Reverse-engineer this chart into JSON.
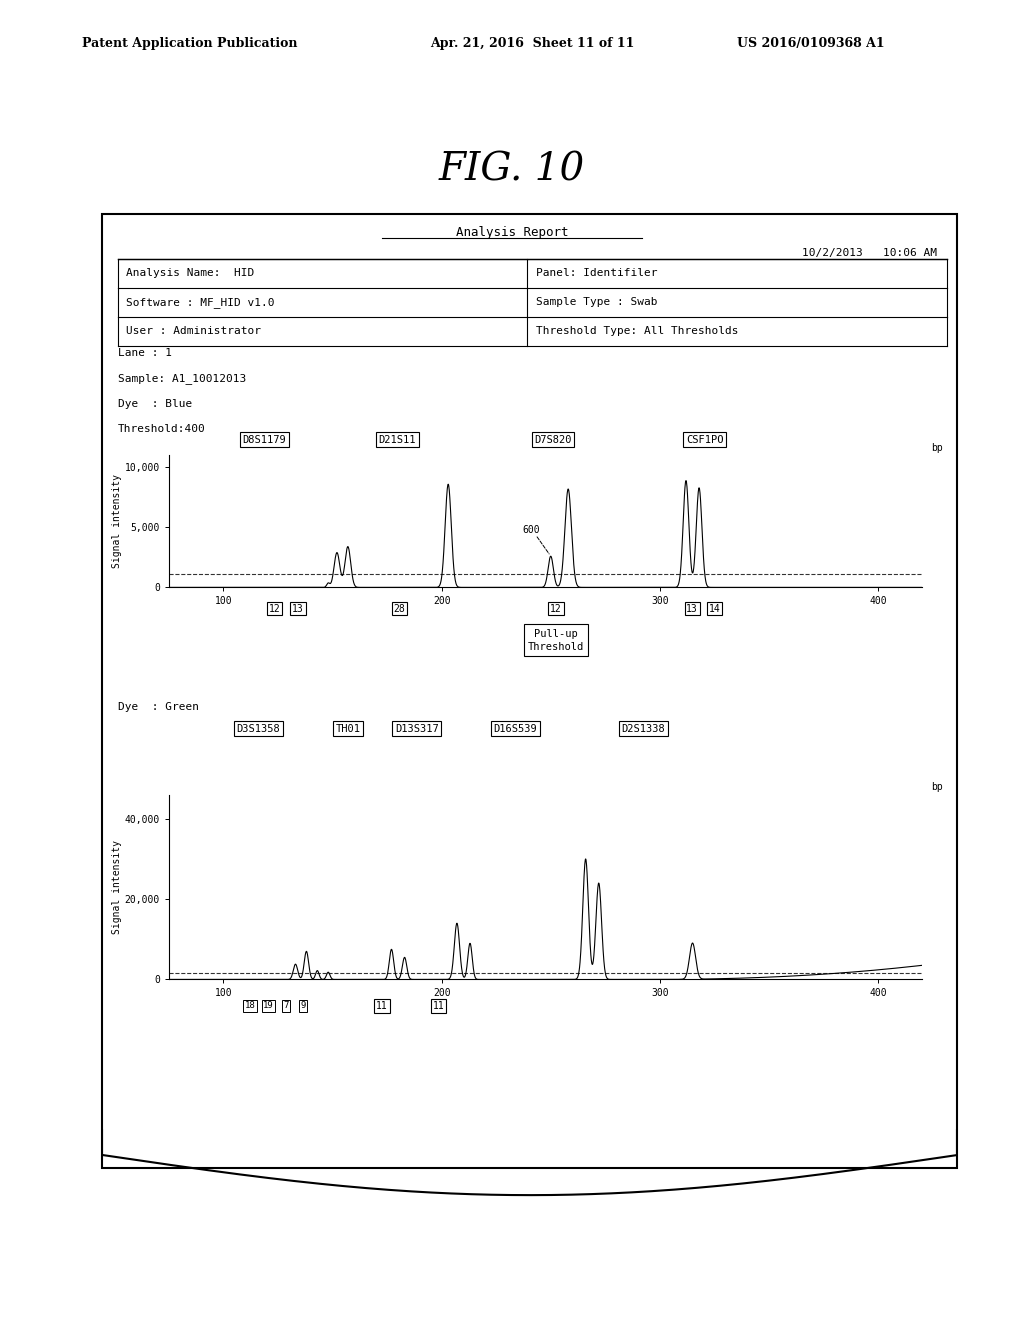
{
  "fig_title": "FIG. 10",
  "patent_header_left": "Patent Application Publication",
  "patent_header_mid": "Apr. 21, 2016  Sheet 11 of 11",
  "patent_header_right": "US 2016/0109368 A1",
  "report_title": "Analysis Report",
  "date_time": "10/2/2013   10:06 AM",
  "info_rows": [
    [
      "Analysis Name:  HID",
      "Panel: Identifiler"
    ],
    [
      "Software : MF_HID v1.0",
      "Sample Type : Swab"
    ],
    [
      "User : Administrator",
      "Threshold Type: All Thresholds"
    ]
  ],
  "lane_info": [
    "Lane : 1",
    "Sample: A1_10012013",
    "Dye  : Blue",
    "Threshold:400"
  ],
  "blue_markers": [
    "D8S1179",
    "D21S11",
    "D7S820",
    "CSF1PO"
  ],
  "green_dye_label": "Dye  : Green",
  "green_markers": [
    "D3S1358",
    "TH01",
    "D13S317",
    "D16S539",
    "D2S1338"
  ],
  "bp_label": "bp",
  "signal_ylabel": "Signal intensity",
  "blue_ytick_labels": [
    "0",
    "5,000",
    "10,000"
  ],
  "blue_yticks": [
    0,
    5000,
    10000
  ],
  "blue_ylim": [
    0,
    11000
  ],
  "green_ytick_labels": [
    "0",
    "20,000",
    "40,000"
  ],
  "green_yticks": [
    0,
    20000,
    40000
  ],
  "green_ylim": [
    0,
    46000
  ],
  "xlim": [
    75,
    420
  ],
  "xticks": [
    100,
    200,
    300,
    400
  ],
  "xtick_labels": [
    "100",
    "200",
    "300",
    "400"
  ],
  "background_color": "#ffffff"
}
